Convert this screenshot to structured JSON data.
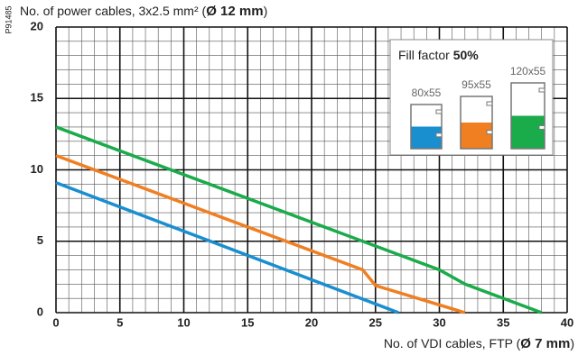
{
  "chart_data": {
    "type": "line",
    "side_code": "P91485",
    "ylabel": [
      "No. of power cables, 3x2.5 mm² (",
      "Ø 12 mm",
      ")"
    ],
    "xlabel": [
      "No. of VDI cables, FTP (",
      "Ø 7 mm",
      ")"
    ],
    "legend_title": [
      "Fill factor ",
      "50%"
    ],
    "xlim": [
      0,
      40
    ],
    "ylim": [
      0,
      20
    ],
    "xticks": [
      0,
      5,
      10,
      15,
      20,
      25,
      30,
      35,
      40
    ],
    "yticks": [
      0,
      5,
      10,
      15,
      20
    ],
    "xminorticks": [
      0,
      1,
      2,
      3,
      4,
      5,
      6,
      7,
      8,
      9,
      10,
      11,
      12,
      13,
      14,
      15,
      16,
      17,
      18,
      19,
      20,
      21,
      22,
      23,
      24,
      25,
      26,
      27,
      28,
      29,
      30,
      31,
      32,
      33,
      34,
      35,
      36,
      37,
      38,
      39,
      40
    ],
    "yminorticks": [
      0,
      1,
      2,
      3,
      4,
      5,
      6,
      7,
      8,
      9,
      10,
      11,
      12,
      13,
      14,
      15,
      16,
      17,
      18,
      19,
      20
    ],
    "grid": true,
    "series": [
      {
        "name": "80x55",
        "color": "#1a8fd0",
        "x": [
          0,
          26.8
        ],
        "values": [
          9.1,
          0
        ]
      },
      {
        "name": "95x55",
        "color": "#f07f22",
        "x": [
          0,
          24,
          25,
          32
        ],
        "values": [
          11,
          3,
          1.9,
          0
        ]
      },
      {
        "name": "120x55",
        "color": "#1aab4b",
        "x": [
          0,
          30,
          32,
          38
        ],
        "values": [
          13,
          3,
          2,
          0
        ]
      }
    ]
  }
}
